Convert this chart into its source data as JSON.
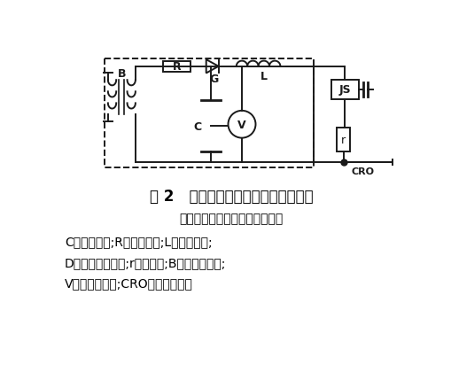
{
  "title": "图 2   标准冲击电流检测法的原理接线",
  "subtitle": "（虚线框内为冲击电流发生器）",
  "line1": "C一充电电容;R一充电电阻;L一阻尼电感;",
  "line2": "D一整流硅二极管;r一分流器;B一试验变压器;",
  "line3": "V一静电电压表;CRO一高压示波器",
  "bg_color": "#ffffff",
  "text_color": "#000000",
  "circuit_color": "#1a1a1a",
  "lw": 1.4
}
